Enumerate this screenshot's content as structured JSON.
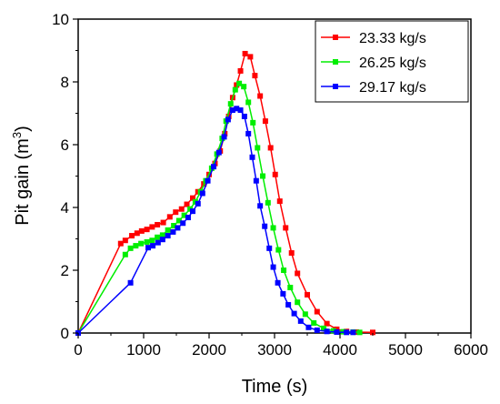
{
  "chart_data": {
    "type": "line",
    "xlabel": "Time (s)",
    "ylabel_main": "Pit gain (m",
    "ylabel_sup": "3",
    "ylabel_tail": ")",
    "xlim": [
      0,
      6000
    ],
    "ylim": [
      0,
      10
    ],
    "xticks": [
      0,
      1000,
      2000,
      3000,
      4000,
      5000,
      6000
    ],
    "yticks": [
      0,
      2,
      4,
      6,
      8,
      10
    ],
    "grid": false,
    "legend_position": "top-right",
    "series": [
      {
        "name": "23.33 kg/s",
        "color": "#ff0000",
        "x": [
          0,
          650,
          720,
          820,
          900,
          970,
          1050,
          1130,
          1210,
          1300,
          1400,
          1490,
          1580,
          1660,
          1750,
          1830,
          1920,
          2000,
          2090,
          2170,
          2240,
          2300,
          2360,
          2420,
          2480,
          2550,
          2630,
          2700,
          2780,
          2860,
          2940,
          3010,
          3080,
          3170,
          3260,
          3350,
          3500,
          3650,
          3800,
          3950,
          4100,
          4250,
          4500
        ],
        "y": [
          0,
          2.85,
          2.95,
          3.1,
          3.18,
          3.25,
          3.3,
          3.38,
          3.45,
          3.52,
          3.7,
          3.85,
          3.95,
          4.1,
          4.3,
          4.5,
          4.75,
          5.05,
          5.4,
          5.8,
          6.35,
          6.9,
          7.5,
          7.9,
          8.35,
          8.9,
          8.8,
          8.2,
          7.55,
          6.75,
          5.9,
          5.05,
          4.2,
          3.35,
          2.55,
          1.9,
          1.22,
          0.68,
          0.3,
          0.12,
          0.05,
          0.03,
          0.02
        ]
      },
      {
        "name": "26.25 kg/s",
        "color": "#00ee00",
        "x": [
          0,
          720,
          800,
          880,
          960,
          1050,
          1130,
          1210,
          1290,
          1370,
          1460,
          1540,
          1620,
          1710,
          1790,
          1870,
          1950,
          2040,
          2120,
          2200,
          2260,
          2330,
          2400,
          2460,
          2530,
          2600,
          2670,
          2740,
          2820,
          2900,
          2980,
          3060,
          3140,
          3240,
          3350,
          3470,
          3600,
          3750,
          3900,
          4050,
          4200,
          4300
        ],
        "y": [
          0,
          2.5,
          2.7,
          2.78,
          2.85,
          2.9,
          2.95,
          3.05,
          3.12,
          3.28,
          3.42,
          3.58,
          3.75,
          3.95,
          4.18,
          4.5,
          4.85,
          5.25,
          5.7,
          6.2,
          6.75,
          7.3,
          7.75,
          7.95,
          7.85,
          7.35,
          6.7,
          5.9,
          5.0,
          4.15,
          3.35,
          2.65,
          2.0,
          1.45,
          0.98,
          0.6,
          0.32,
          0.15,
          0.07,
          0.04,
          0.03,
          0.02
        ]
      },
      {
        "name": "29.17 kg/s",
        "color": "#0000ff",
        "x": [
          0,
          800,
          1070,
          1140,
          1220,
          1290,
          1370,
          1450,
          1520,
          1600,
          1680,
          1750,
          1830,
          1900,
          1980,
          2070,
          2150,
          2230,
          2290,
          2360,
          2420,
          2480,
          2540,
          2600,
          2660,
          2720,
          2780,
          2850,
          2920,
          2980,
          3050,
          3130,
          3210,
          3300,
          3400,
          3520,
          3650,
          3800,
          3950,
          4100,
          4200
        ],
        "y": [
          0,
          1.6,
          2.72,
          2.78,
          2.88,
          2.98,
          3.1,
          3.22,
          3.35,
          3.5,
          3.68,
          3.88,
          4.12,
          4.45,
          4.85,
          5.3,
          5.75,
          6.25,
          6.8,
          7.1,
          7.15,
          7.1,
          6.9,
          6.35,
          5.6,
          4.85,
          4.05,
          3.4,
          2.7,
          2.1,
          1.6,
          1.25,
          0.9,
          0.62,
          0.38,
          0.18,
          0.09,
          0.05,
          0.03,
          0.02,
          0.02
        ]
      }
    ]
  }
}
